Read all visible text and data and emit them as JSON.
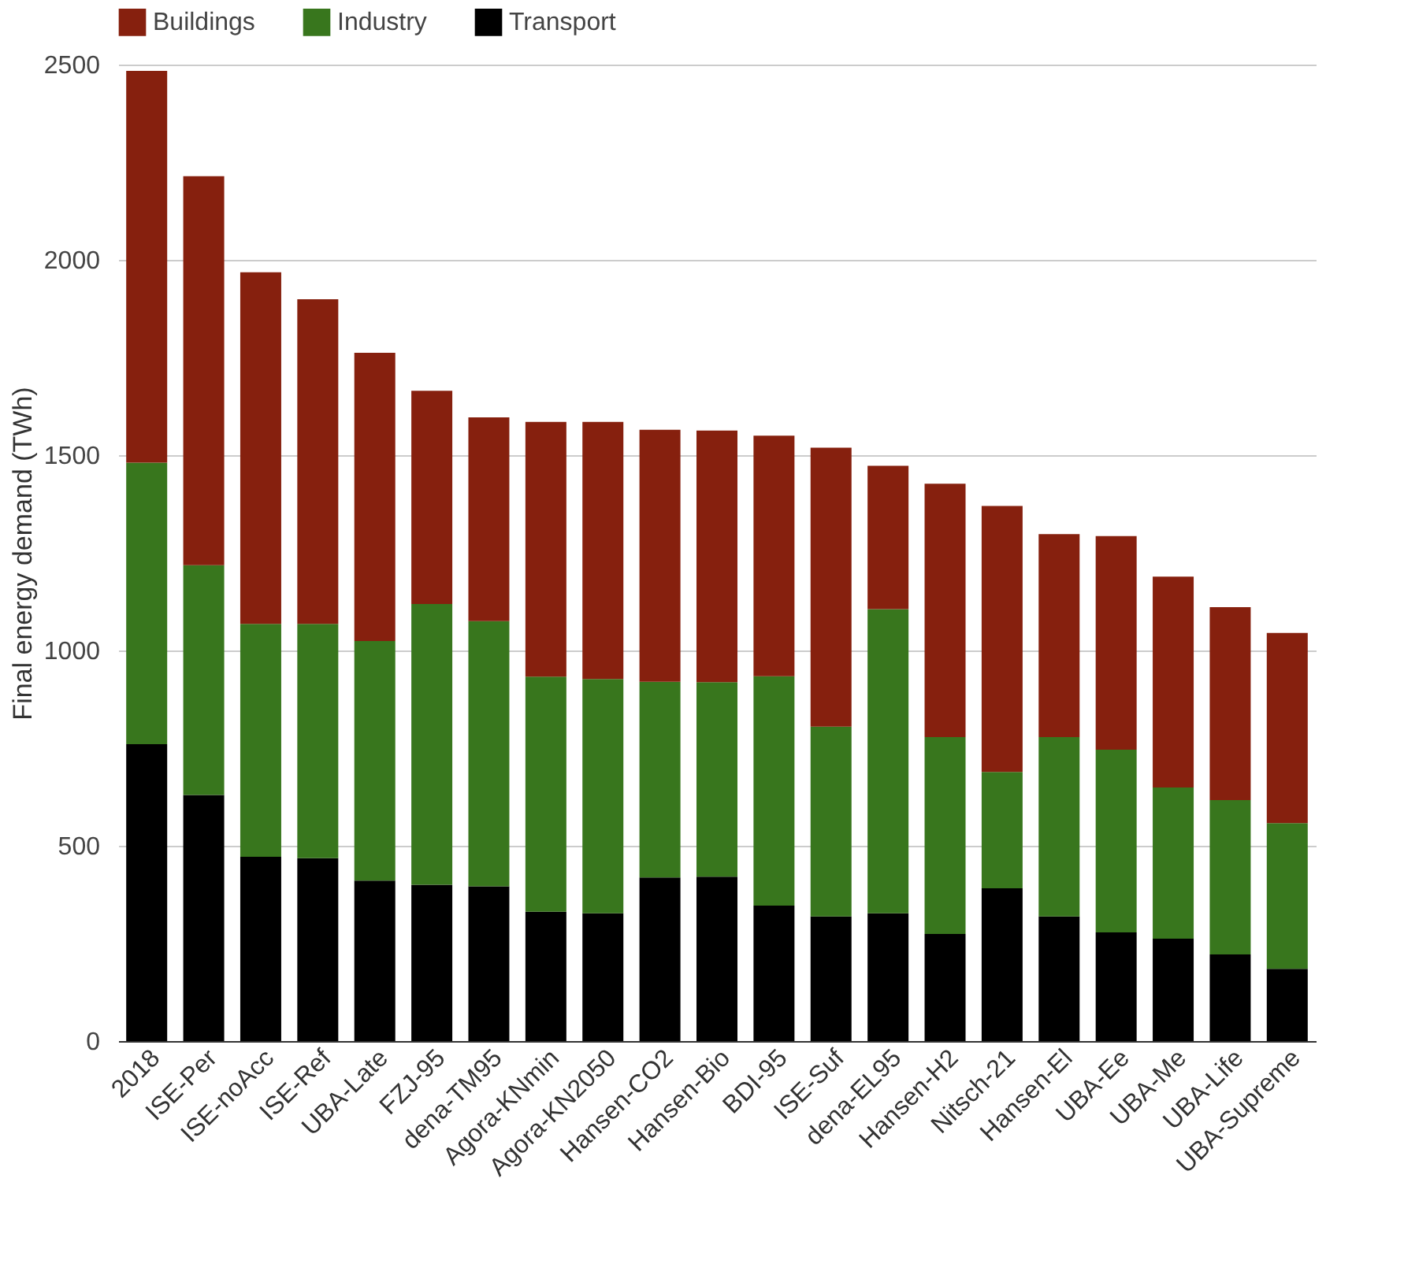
{
  "chart_data": {
    "type": "bar",
    "stacked": true,
    "ylabel": "Final energy demand (TWh)",
    "categories": [
      "2018",
      "ISE-Per",
      "ISE-noAcc",
      "ISE-Ref",
      "UBA-Late",
      "FZJ-95",
      "dena-TM95",
      "Agora-KNmin",
      "Agora-KN2050",
      "Hansen-CO2",
      "Hansen-Bio",
      "BDI-95",
      "ISE-Suf",
      "dena-EL95",
      "Hansen-H2",
      "Nitsch-21",
      "Hansen-El",
      "UBA-Ee",
      "UBA-Me",
      "UBA-Life",
      "UBA-Supreme"
    ],
    "series": [
      {
        "name": "Transport",
        "color": "#000000",
        "values": [
          760,
          630,
          472,
          468,
          411,
          400,
          396,
          331,
          327,
          419,
          421,
          347,
          319,
          327,
          274,
          391,
          319,
          278,
          262,
          222,
          185
        ]
      },
      {
        "name": "Industry",
        "color": "#38761d",
        "values": [
          721,
          588,
          596,
          600,
          613,
          719,
          679,
          602,
          600,
          501,
          498,
          587,
          486,
          779,
          504,
          298,
          459,
          468,
          387,
          395,
          373
        ]
      },
      {
        "name": "Buildings",
        "color": "#86200e",
        "values": [
          1003,
          996,
          900,
          831,
          738,
          546,
          522,
          652,
          658,
          645,
          644,
          616,
          714,
          367,
          649,
          681,
          520,
          547,
          540,
          494,
          487
        ]
      }
    ],
    "ylim": [
      0,
      2500
    ],
    "yticks": [
      0,
      500,
      1000,
      1500,
      2000,
      2500
    ],
    "grid": "y",
    "legend": "top"
  }
}
